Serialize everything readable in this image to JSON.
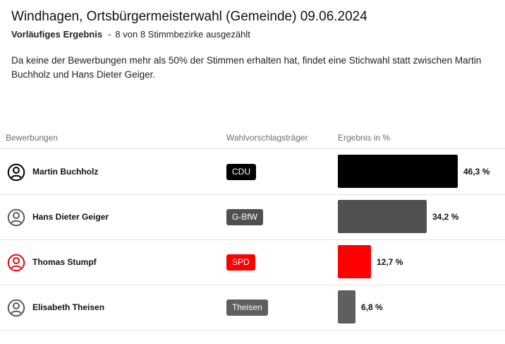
{
  "header": {
    "title": "Windhagen, Ortsbürgermeisterwahl (Gemeinde) 09.06.2024",
    "status_label": "Vorläufiges Ergebnis",
    "separator": "-",
    "count_text": "8 von 8 Stimmbezirke ausgezählt"
  },
  "notice": "Da keine der Bewerbungen mehr als 50% der Stimmen erhalten hat, findet eine Stichwahl statt zwischen Martin Buchholz und Hans Dieter Geiger.",
  "table": {
    "columns": [
      "Bewerbungen",
      "Wahlvorschlagsträger",
      "Ergebnis in %"
    ],
    "rows": [
      {
        "name": "Martin Buchholz",
        "party": "CDU",
        "result": 46.3,
        "result_label": "46,3 %",
        "color": "#000000",
        "icon": "person-circle-icon"
      },
      {
        "name": "Hans Dieter Geiger",
        "party": "G-BfW",
        "result": 34.2,
        "result_label": "34,2 %",
        "color": "#505050",
        "icon": "person-circle-icon"
      },
      {
        "name": "Thomas Stumpf",
        "party": "SPD",
        "result": 12.7,
        "result_label": "12,7 %",
        "color": "#ff0000",
        "icon": "person-circle-icon"
      },
      {
        "name": "Elisabeth Theisen",
        "party": "Theisen",
        "result": 6.8,
        "result_label": "6,8 %",
        "color": "#5f5f5f",
        "icon": "person-circle-icon"
      }
    ]
  },
  "colors": {
    "icon_default": "#5a5a5a",
    "icon_leading": "#000000",
    "icon_spd": "#e30613"
  }
}
